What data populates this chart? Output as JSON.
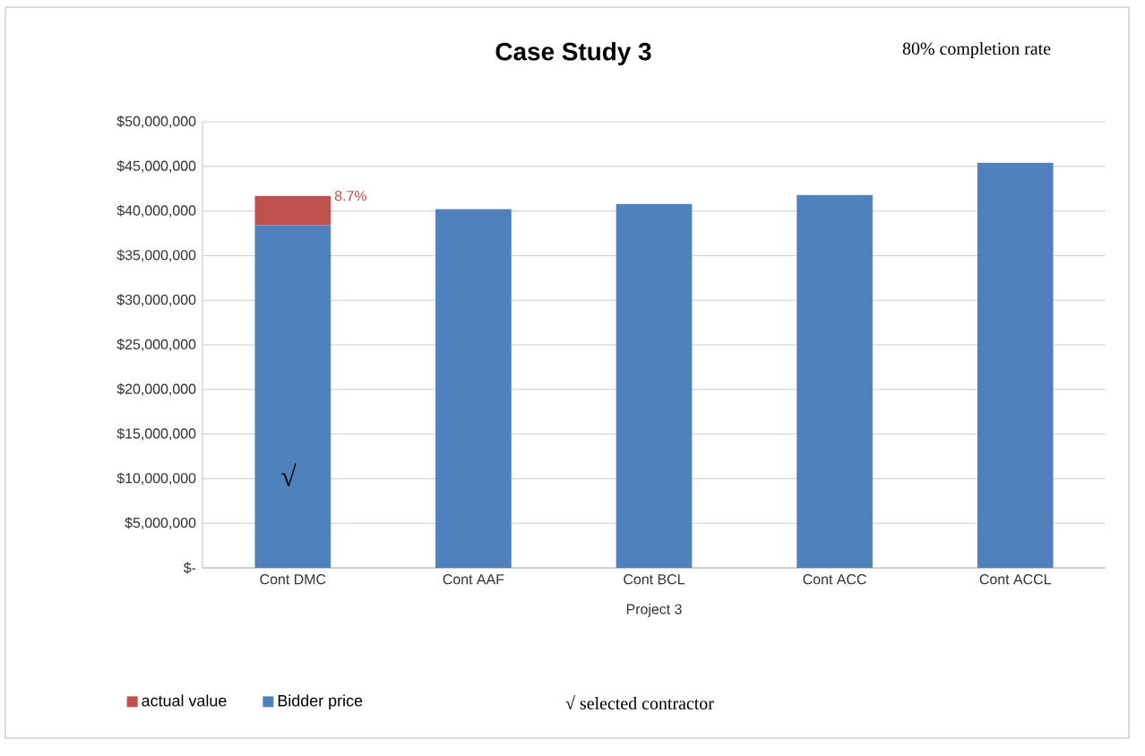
{
  "chart_data": {
    "type": "bar",
    "title": "Case Study 3",
    "xlabel": "Project 3",
    "stacked": true,
    "categories": [
      "Cont DMC",
      "Cont AAF",
      "Cont BCL",
      "Cont ACC",
      "Cont ACCL"
    ],
    "series": [
      {
        "name": "Bidder price",
        "color": "#4f81bd",
        "values": [
          38400000,
          40200000,
          40800000,
          41800000,
          45400000
        ]
      },
      {
        "name": "actual value",
        "color": "#c0504d",
        "values": [
          3300000,
          null,
          null,
          null,
          null
        ]
      }
    ],
    "ylim": [
      0,
      50000000
    ],
    "yticks": [
      {
        "value": 0,
        "label": "$-"
      },
      {
        "value": 5000000,
        "label": "$5,000,000"
      },
      {
        "value": 10000000,
        "label": "$10,000,000"
      },
      {
        "value": 15000000,
        "label": "$15,000,000"
      },
      {
        "value": 20000000,
        "label": "$20,000,000"
      },
      {
        "value": 25000000,
        "label": "$25,000,000"
      },
      {
        "value": 30000000,
        "label": "$30,000,000"
      },
      {
        "value": 35000000,
        "label": "$35,000,000"
      },
      {
        "value": 40000000,
        "label": "$40,000,000"
      },
      {
        "value": 45000000,
        "label": "$45,000,000"
      },
      {
        "value": 50000000,
        "label": "$50,000,000"
      }
    ],
    "grid": "y",
    "legend": "bottom",
    "annotations": [
      "80% completion rate",
      {
        "text": "8.7%",
        "x": "Cont DMC",
        "y": 41700000
      },
      "√",
      "√ selected contractor"
    ]
  }
}
